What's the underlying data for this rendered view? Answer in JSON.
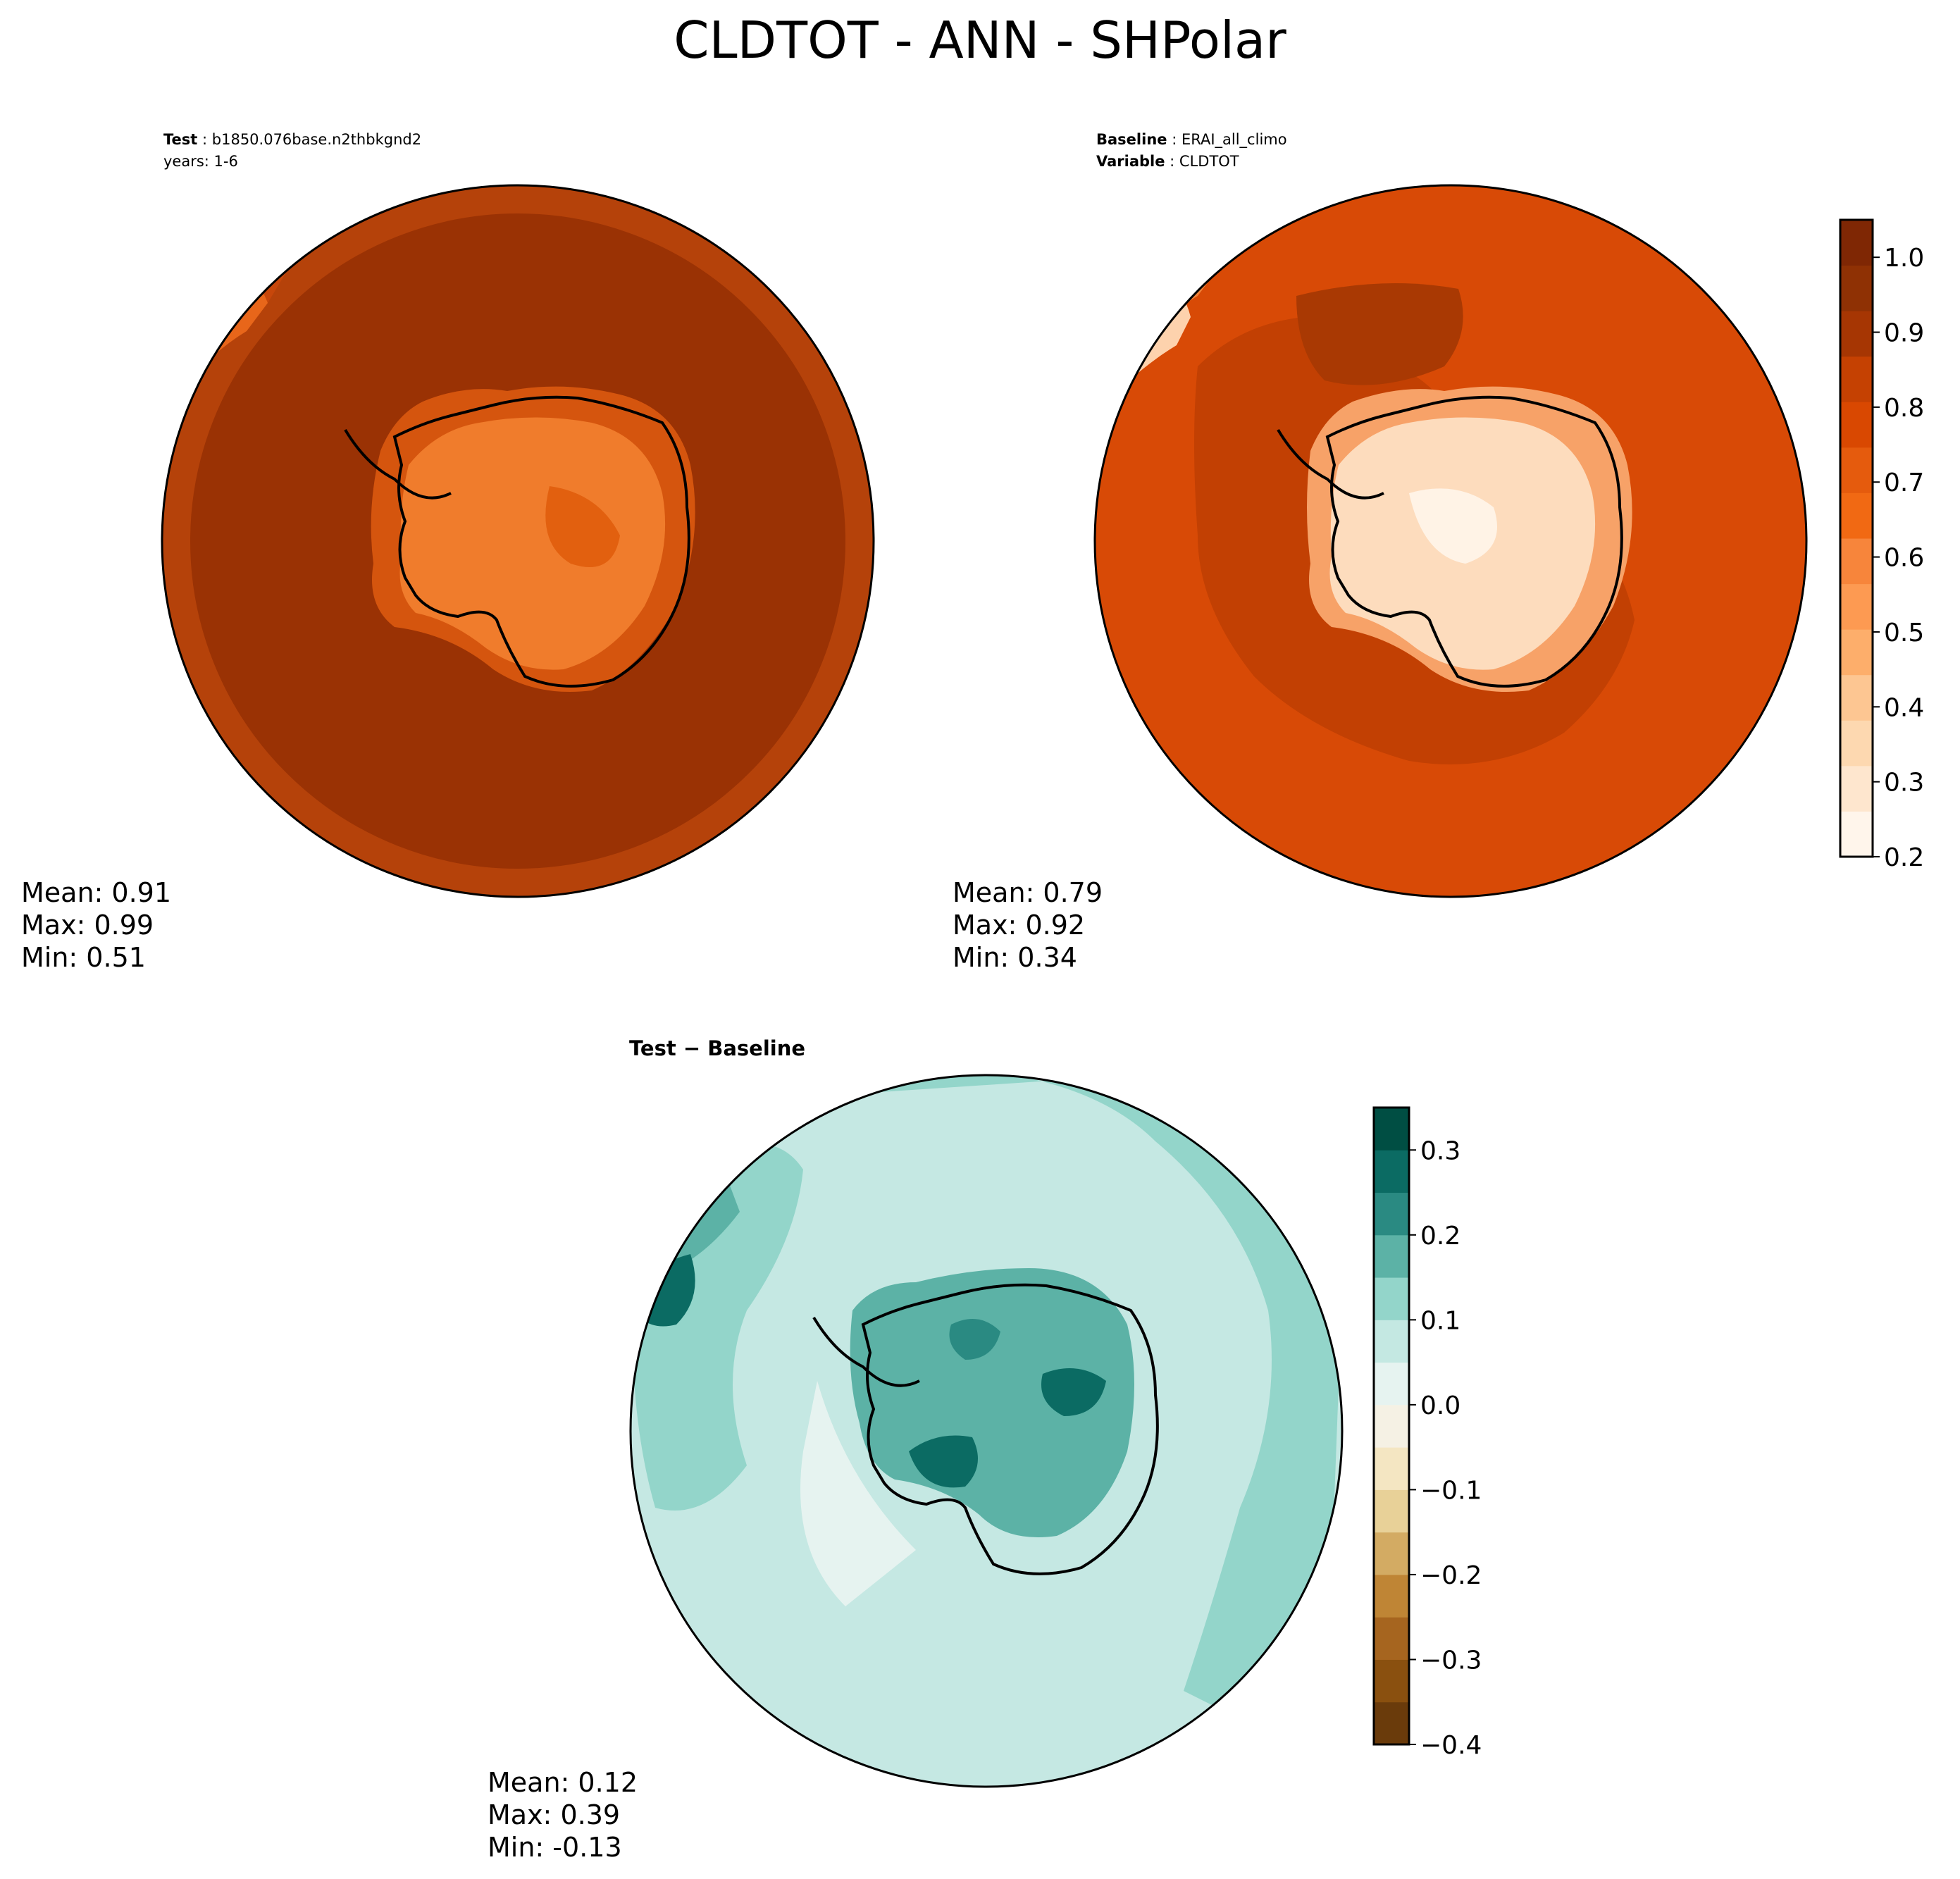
{
  "title": "CLDTOT - ANN - SHPolar",
  "panels": {
    "test": {
      "label_key": "Test",
      "label_value": "b1850.076base.n2thbkgnd2",
      "line2": "years: 1-6",
      "stats": {
        "mean": "Mean:  0.91",
        "max": "Max:  0.99",
        "min": "Min:  0.51"
      }
    },
    "baseline": {
      "label_key": "Baseline",
      "label_value": "ERAI_all_climo",
      "line2_key": "Variable",
      "line2_value": "CLDTOT",
      "stats": {
        "mean": "Mean:  0.79",
        "max": "Max:  0.92",
        "min": "Min:  0.34"
      }
    },
    "diff": {
      "title": "Test − Baseline",
      "stats": {
        "mean": "Mean:  0.12",
        "max": "Max:  0.39",
        "min": "Min: -0.13"
      }
    }
  },
  "chart_data": [
    {
      "type": "heatmap",
      "name": "Test",
      "projection": "South polar stereographic",
      "mean": 0.91,
      "max": 0.99,
      "min": 0.51,
      "colormap": "Oranges",
      "color_range": [
        0.2,
        1.05
      ]
    },
    {
      "type": "heatmap",
      "name": "Baseline",
      "projection": "South polar stereographic",
      "mean": 0.79,
      "max": 0.92,
      "min": 0.34,
      "colormap": "Oranges",
      "color_range": [
        0.2,
        1.05
      ]
    },
    {
      "type": "heatmap",
      "name": "Test - Baseline",
      "projection": "South polar stereographic",
      "mean": 0.12,
      "max": 0.39,
      "min": -0.13,
      "colormap": "BrBG",
      "color_range": [
        -0.4,
        0.35
      ]
    }
  ],
  "colorbars": {
    "main": {
      "ticks": [
        "0.2",
        "0.3",
        "0.4",
        "0.5",
        "0.6",
        "0.7",
        "0.8",
        "0.9",
        "1.0"
      ],
      "tick_values": [
        0.2,
        0.3,
        0.4,
        0.5,
        0.6,
        0.7,
        0.8,
        0.9,
        1.0
      ],
      "range": [
        0.2,
        1.05
      ],
      "colors": [
        "#fff5eb",
        "#fee6ce",
        "#fdd8b0",
        "#fdc692",
        "#fdae6b",
        "#fd9a52",
        "#f7853b",
        "#f16913",
        "#e55b0d",
        "#d94801",
        "#c54102",
        "#a63603",
        "#8f3104",
        "#7f2704"
      ]
    },
    "diff": {
      "ticks": [
        "−0.4",
        "−0.3",
        "−0.2",
        "−0.1",
        "0.0",
        "0.1",
        "0.2",
        "0.3"
      ],
      "tick_values": [
        -0.4,
        -0.3,
        -0.2,
        -0.1,
        0.0,
        0.1,
        0.2,
        0.3
      ],
      "range": [
        -0.4,
        0.35
      ],
      "colors": [
        "#6a3b0b",
        "#8a500f",
        "#a6651f",
        "#bf8535",
        "#d3ab63",
        "#e8d198",
        "#f4e6c2",
        "#f5f1e4",
        "#e6f3f0",
        "#c4e8e2",
        "#93d5ca",
        "#5cb2a6",
        "#2a8a82",
        "#0b6b63",
        "#004e43"
      ]
    }
  },
  "colors": {
    "ocean_test": "#9a3204",
    "ant_test": "#f47e2e",
    "ocean_base": "#d84a06",
    "ant_base": "#fbd2ab",
    "ocean_diff": "#c5e8e3"
  }
}
